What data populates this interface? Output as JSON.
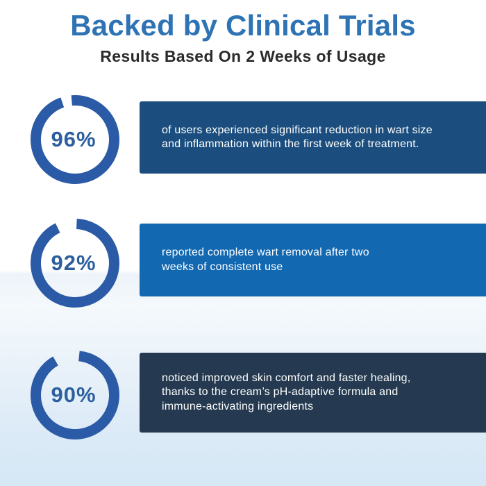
{
  "header": {
    "title": "Backed by Clinical Trials",
    "subtitle": "Results Based On 2 Weeks of Usage"
  },
  "colors": {
    "title_blue": "#2e73b4",
    "subtitle_dark": "#2b2b2b",
    "ring_blue": "#2b5ba6",
    "percent_text_blue": "#2d5f9e",
    "box_text": "#ffffff",
    "box1_bg": "#1b4e7e",
    "box2_bg": "#1268b1",
    "box3_bg": "#253a50",
    "background_bottom": "#d5e7f5"
  },
  "stats": [
    {
      "value": 96,
      "percent_label": "96%",
      "box_color": "#1b4e7e",
      "description": "of users experienced significant reduction in wart size\nand inflammation within the first week of treatment."
    },
    {
      "value": 92,
      "percent_label": "92%",
      "box_color": "#1268b1",
      "description": "reported complete wart removal after two\nweeks of consistent use"
    },
    {
      "value": 90,
      "percent_label": "90%",
      "box_color": "#253a50",
      "description": "noticed improved skin comfort and faster healing,\nthanks to the cream’s pH-adaptive formula and\nimmune-activating ingredients"
    }
  ],
  "chart_data": {
    "type": "pie",
    "variant": "donut-gauge (three rings, gap rendered at top of each ring)",
    "title": "Backed by Clinical Trials",
    "subtitle": "Results Based On 2 Weeks of Usage",
    "legend_position": "right of each ring, text inside colored box",
    "gauges": [
      {
        "value": 96,
        "unit": "%",
        "label": "of users experienced significant reduction in wart size and inflammation within the first week of treatment."
      },
      {
        "value": 92,
        "unit": "%",
        "label": "reported complete wart removal after two weeks of consistent use"
      },
      {
        "value": 90,
        "unit": "%",
        "label": "noticed improved skin comfort and faster healing, thanks to the cream’s pH-adaptive formula and immune-activating ingredients"
      }
    ]
  }
}
